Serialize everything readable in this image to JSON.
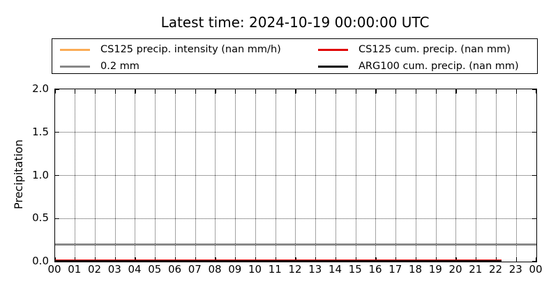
{
  "title": "Latest time: 2024-10-19 00:00:00 UTC",
  "legend": {
    "items": [
      {
        "label": "CS125 precip. intensity (nan mm/h)",
        "color": "#FBAC55"
      },
      {
        "label": "0.2 mm",
        "color": "#888888"
      },
      {
        "label": "CS125 cum. precip. (nan mm)",
        "color": "#E00000"
      },
      {
        "label": "ARG100 cum. precip. (nan mm)",
        "color": "#000000"
      }
    ]
  },
  "axes": {
    "ylabel": "Precipitation"
  },
  "chart_data": {
    "type": "line",
    "title": "Latest time: 2024-10-19 00:00:00 UTC",
    "xlabel": "",
    "ylabel": "Precipitation",
    "x_unit": "hour of day (UTC)",
    "xlim": [
      0,
      24
    ],
    "ylim": [
      0.0,
      2.0
    ],
    "xtick_labels": [
      "00",
      "01",
      "02",
      "03",
      "04",
      "05",
      "06",
      "07",
      "08",
      "09",
      "10",
      "11",
      "12",
      "13",
      "14",
      "15",
      "16",
      "17",
      "18",
      "19",
      "20",
      "21",
      "22",
      "23",
      "00"
    ],
    "yticks": [
      0.0,
      0.5,
      1.0,
      1.5,
      2.0
    ],
    "ytick_labels": [
      "0.0",
      "0.5",
      "1.0",
      "1.5",
      "2.0"
    ],
    "grid": "dotted, both axes, at every hour and every 0.5 mm",
    "legend_position": "upper center above axes, 2 columns, framed",
    "series": [
      {
        "name": "CS125 precip. intensity (nan mm/h)",
        "color": "#FBAC55",
        "linewidth": 3,
        "plotted": false,
        "constant_value": null,
        "note": "all values NaN - no line drawn"
      },
      {
        "name": "0.2 mm",
        "color": "#888888",
        "linewidth": 3,
        "plotted": true,
        "constant_value": 0.2,
        "x_start": 0,
        "x_end": 24
      },
      {
        "name": "CS125 cum. precip. (nan mm)",
        "color": "#E00000",
        "linewidth": 3,
        "plotted": true,
        "constant_value": 0.0,
        "x_start": 0,
        "x_end": 22.25,
        "pixel_shift": -2
      },
      {
        "name": "ARG100 cum. precip. (nan mm)",
        "color": "#000000",
        "linewidth": 3,
        "plotted": true,
        "constant_value": 0.0,
        "x_start": 0,
        "x_end": 22.25,
        "pixel_shift": -1
      }
    ]
  }
}
